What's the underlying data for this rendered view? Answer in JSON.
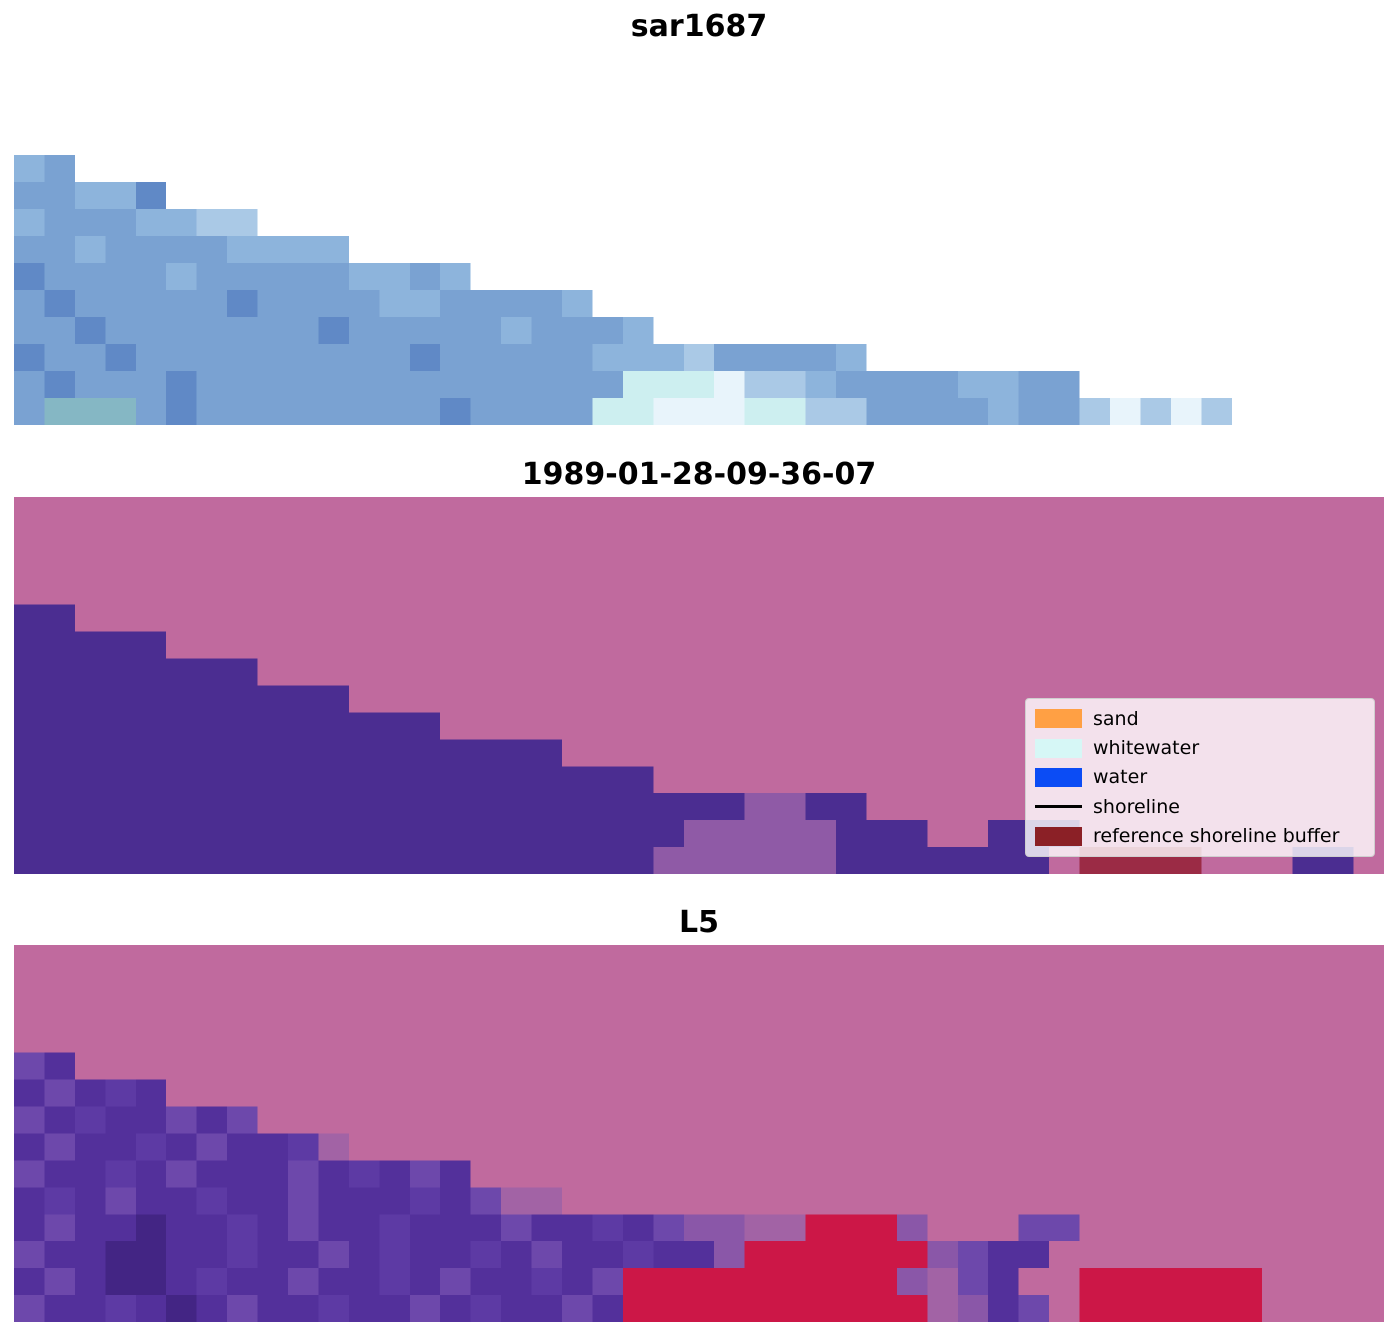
{
  "chart_data": [
    {
      "type": "heatmap",
      "title": "sar1687",
      "grid": {
        "cols": 45,
        "pad": ".",
        "palette": {
          ".": "#ffffff",
          "d": "#6089c6",
          "m": "#7aa2d2",
          "l": "#8db4dc",
          "p": "#aac9e6",
          "c": "#cdeff0",
          "w": "#e8f4fb",
          "t": "#85b7c4"
        },
        "rows": [
          "lm",
          "mmlld",
          "lmmmllpp",
          "mmlmmmmllll",
          "dmmmmlmmmmmllml",
          "mdmmmmmdmmmmllmmmml",
          "mmdmmmmmmmdmmmmmlmmml",
          "dmmdmmmmmmmmmdmmmmmlllpmmmml",
          "mdmmmdmmmmmmmmmmmmmmcccwpplmmmmllmm",
          "mtttmdmmmmmmmmdmmmmccwwwccppmmmmlmmpwpwp"
        ]
      }
    },
    {
      "type": "heatmap",
      "title": "1989-01-28-09-36-07",
      "legend_location": "lower right",
      "grid": {
        "cols": 45,
        "pad": "P",
        "palette": {
          "P": "#c06a9e",
          "U": "#4b2d91",
          "V": "#8f5aa6",
          "R": "#9b2b45"
        },
        "rows": [
          "",
          "",
          "",
          "",
          "UU",
          "UUUUU",
          "UUUUUUUU",
          "UUUUUUUUUUU",
          "UUUUUUUUUUUUUU",
          "UUUUUUUUUUUUUUUUUU",
          "UUUUUUUUUUUUUUUUUUUUU",
          "UUUUUUUUUUUUUUUUUUUUUUUUVVUU",
          "UUUUUUUUUUUUUUUUUUUUUUVVVVVUUUPPUUU",
          "UUUUUUUUUUUUUUUUUUUUUVVVVVVUUUUUUUPRRRRPPPUU"
        ]
      }
    },
    {
      "type": "heatmap",
      "title": "L5",
      "grid": {
        "cols": 45,
        "pad": "P",
        "palette": {
          "P": "#c06a9e",
          "U": "#53309b",
          "u": "#6d48ab",
          "v": "#5d3aa4",
          "x": "#432584",
          "V": "#8a57a8",
          "W": "#a263a5",
          "R": "#cc1747"
        },
        "rows": [
          "",
          "",
          "",
          "",
          "uU",
          "UuUvU",
          "uUvUUuUu",
          "UuUUvUuUUvW",
          "uUUvUuUUUuUvUuU",
          "UvUuUUvUUuUUUvUuWW",
          "UuUUxUUvUuUUvUUUuUUvUuVVWWRRRVPPPuu",
          "uUUxxUUvUUuUvUUvUuUUvUUVRRRRRRVuUU",
          "UuUxxUvUUuUUvUuUUvUuRRRRRRRRRVWuUPPRRRRRR",
          "uUUvUxUuUUvUUuUvUUuURRRRRRRRRRWVUuPRRRRRR"
        ]
      }
    }
  ],
  "legend": {
    "items": [
      {
        "label": "sand",
        "color": "#ffa044",
        "swatch": "patch"
      },
      {
        "label": "whitewater",
        "color": "#d6f7f6",
        "swatch": "patch"
      },
      {
        "label": "water",
        "color": "#0b4cf5",
        "swatch": "patch"
      },
      {
        "label": "shoreline",
        "color": "#000000",
        "swatch": "line"
      },
      {
        "label": "reference shoreline buffer",
        "color": "#8b2026",
        "swatch": "patch"
      }
    ]
  }
}
